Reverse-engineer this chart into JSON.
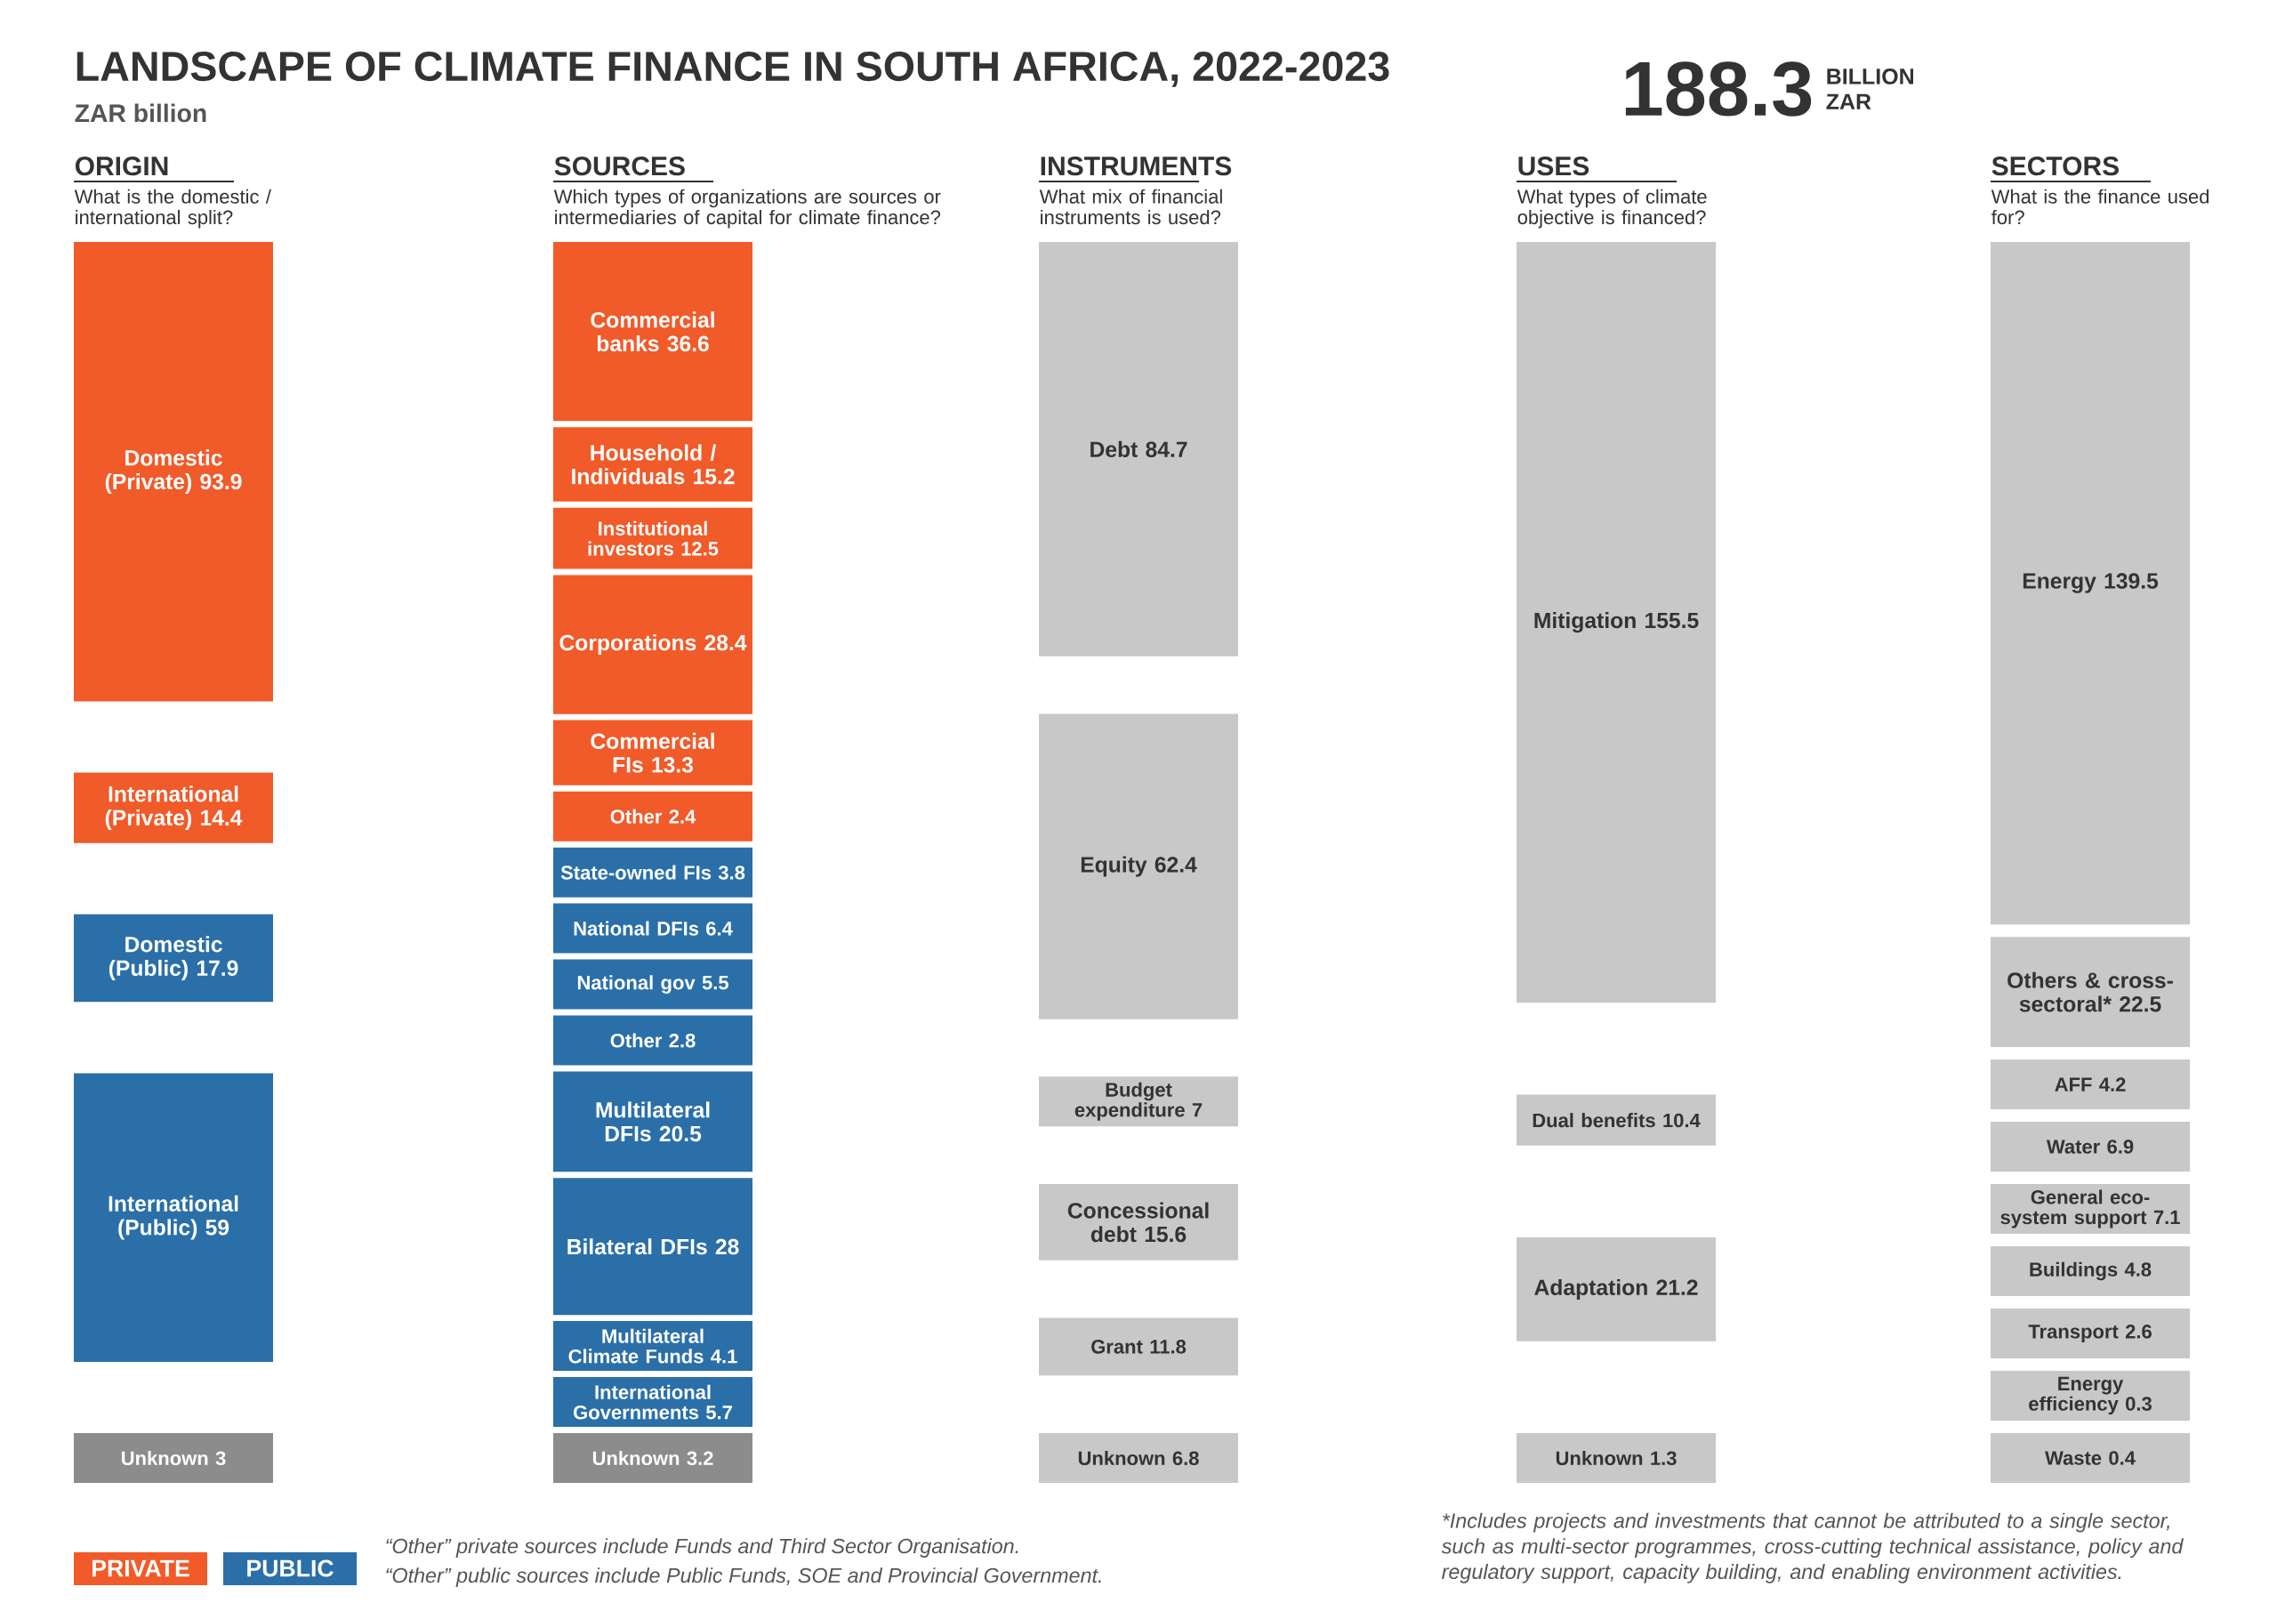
{
  "chart_data": [
    {
      "type": "other",
      "title": "LANDSCAPE OF CLIMATE FINANCE IN SOUTH AFRICA, 2022-2023",
      "subtitle": "ZAR billion",
      "annotations": [
        "188.3",
        "BILLION ZAR",
        "“Other” private sources include Funds and Third Sector Organisation.",
        "“Other” public sources include Public Funds, SOE and Provincial Government.",
        "*Includes projects and investments that cannot be attributed to a single sector, such as multi-sector programmes, cross-cutting technical assistance, policy and regulatory support, capacity building, and enabling environment activities."
      ]
    },
    {
      "type": "other",
      "title": "ORIGIN",
      "subtitle": "What is the domestic / international split?",
      "categories": [
        "Domestic (Private)",
        "International (Private)",
        "Domestic (Public)",
        "International (Public)",
        "Unknown"
      ],
      "data_labels": true,
      "legend": "bottom right",
      "series": [
        {
          "name": "PRIVATE",
          "color": "#f15a29",
          "values": [
            93.9,
            14.4,
            null,
            null,
            null
          ]
        },
        {
          "name": "PUBLIC",
          "color": "#2a6fa8",
          "values": [
            null,
            null,
            17.9,
            59,
            null
          ]
        },
        {
          "color": "#8c8c8c",
          "values": [
            null,
            null,
            null,
            null,
            3
          ]
        }
      ]
    },
    {
      "type": "other",
      "title": "SOURCES",
      "subtitle": "Which types of organizations are sources or intermediaries of capital for climate finance?",
      "categories": [
        "Commercial banks",
        "Household / Individuals",
        "Institutional investors",
        "Corporations",
        "Commercial FIs",
        "Other",
        "State-owned FIs",
        "National DFIs",
        "National gov",
        "Other",
        "Multilateral DFIs",
        "Bilateral DFIs",
        "Multilateral Climate Funds",
        "International Governments",
        "Unknown"
      ],
      "data_labels": true,
      "series": [
        {
          "color": "#f15a29",
          "values": [
            36.6,
            15.2,
            12.5,
            28.4,
            13.3,
            2.4,
            null,
            null,
            null,
            null,
            null,
            null,
            null,
            null,
            null
          ]
        },
        {
          "color": "#2a6fa8",
          "values": [
            null,
            null,
            null,
            null,
            null,
            null,
            3.8,
            6.4,
            5.5,
            2.8,
            20.5,
            28,
            4.1,
            5.7,
            null
          ]
        },
        {
          "color": "#8c8c8c",
          "values": [
            null,
            null,
            null,
            null,
            null,
            null,
            null,
            null,
            null,
            null,
            null,
            null,
            null,
            null,
            3.2
          ]
        }
      ]
    },
    {
      "type": "other",
      "title": "INSTRUMENTS",
      "subtitle": "What mix of financial instruments is used?",
      "categories": [
        "Debt",
        "Equity",
        "Budget expenditure",
        "Concessional debt",
        "Grant",
        "Unknown"
      ],
      "values": [
        84.7,
        62.4,
        7,
        15.6,
        11.8,
        6.8
      ],
      "colors": [
        "#c8c8c9",
        "#c8c8c9",
        "#c8c8c9",
        "#c8c8c9",
        "#c8c8c9",
        "#c8c8c9"
      ],
      "data_labels": true
    },
    {
      "type": "other",
      "title": "USES",
      "subtitle": "What types of climate objective is financed?",
      "categories": [
        "Mitigation",
        "Dual benefits",
        "Adaptation",
        "Unknown"
      ],
      "values": [
        155.5,
        10.4,
        21.2,
        1.3
      ],
      "colors": [
        "#c8c8c9",
        "#c8c8c9",
        "#c8c8c9",
        "#c8c8c9"
      ],
      "data_labels": true
    },
    {
      "type": "other",
      "title": "SECTORS",
      "subtitle": "What is the finance used for?",
      "categories": [
        "Energy",
        "Others & cross-sectoral*",
        "AFF",
        "Water",
        "General eco-system support",
        "Buildings",
        "Transport",
        "Energy efficiency",
        "Waste"
      ],
      "values": [
        139.5,
        22.5,
        4.2,
        6.9,
        7.1,
        4.8,
        2.6,
        0.3,
        0.4
      ],
      "colors": [
        "#c8c8c9",
        "#c8c8c9",
        "#c8c8c9",
        "#c8c8c9",
        "#c8c8c9",
        "#c8c8c9",
        "#c8c8c9",
        "#c8c8c9",
        "#c8c8c9"
      ],
      "data_labels": true
    }
  ]
}
